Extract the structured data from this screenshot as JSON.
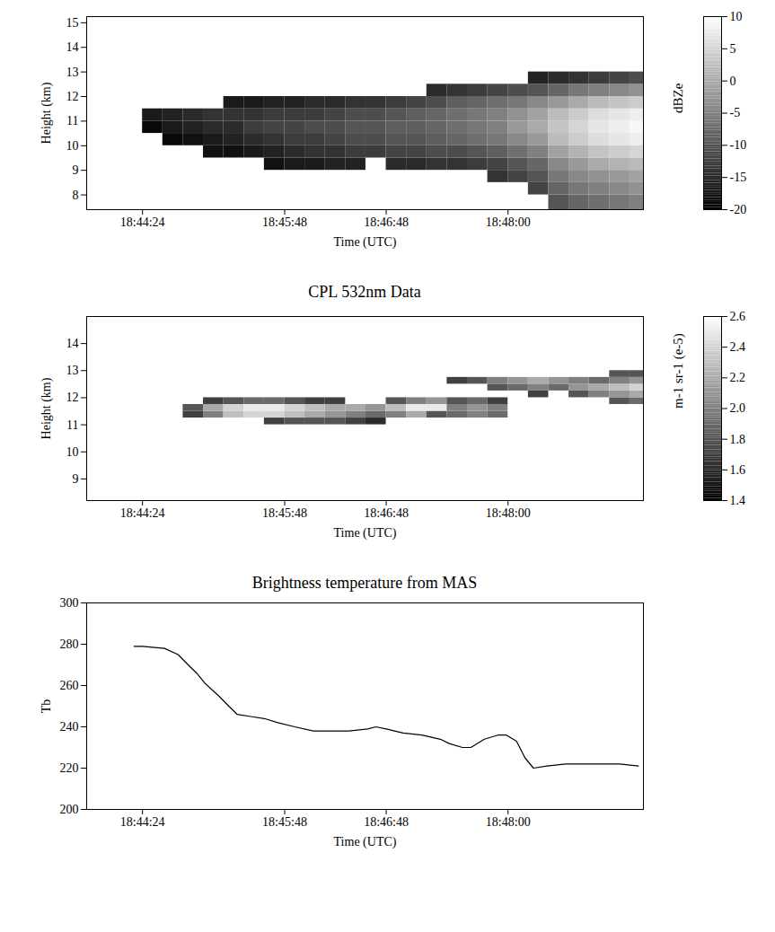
{
  "chart_data": [
    {
      "type": "heatmap",
      "xlabel": "Time (UTC)",
      "ylabel": "Height (km)",
      "xlim": [
        67431,
        67760
      ],
      "xticks": [
        {
          "value": 67464,
          "label": "18:44:24"
        },
        {
          "value": 67548,
          "label": "18:45:48"
        },
        {
          "value": 67608,
          "label": "18:46:48"
        },
        {
          "value": 67680,
          "label": "18:48:00"
        }
      ],
      "ylim": [
        7.4,
        15.25
      ],
      "yticks": [
        8,
        9,
        10,
        11,
        12,
        13,
        14,
        15
      ],
      "x_edges": [
        67464,
        67476,
        67488,
        67500,
        67512,
        67524,
        67536,
        67548,
        67560,
        67572,
        67584,
        67596,
        67608,
        67620,
        67632,
        67644,
        67656,
        67668,
        67680,
        67692,
        67704,
        67716,
        67728,
        67740,
        67752,
        67764
      ],
      "y_edges": [
        7.4,
        8,
        8.5,
        9,
        9.5,
        10,
        10.5,
        11,
        11.5,
        12,
        12.5,
        13
      ],
      "values": [
        [
          null,
          null,
          null,
          null,
          null,
          null,
          -19,
          -17,
          null,
          null,
          null
        ],
        [
          null,
          null,
          null,
          null,
          null,
          -19,
          -17,
          -16,
          null,
          null,
          null
        ],
        [
          null,
          null,
          null,
          null,
          null,
          -18,
          -16,
          -15,
          null,
          null,
          null
        ],
        [
          null,
          null,
          null,
          null,
          -18,
          -17,
          -15,
          -14,
          null,
          null,
          null
        ],
        [
          null,
          null,
          null,
          null,
          -18,
          -16,
          -15,
          -14,
          -17,
          null,
          null
        ],
        [
          null,
          null,
          null,
          null,
          -17,
          -15,
          -13,
          -14,
          -17,
          null,
          null
        ],
        [
          null,
          null,
          null,
          -18,
          -16,
          -14,
          -12,
          -13,
          -16,
          null,
          null
        ],
        [
          null,
          null,
          null,
          -17,
          -15,
          -13,
          -12,
          -13,
          -16,
          null,
          null
        ],
        [
          null,
          null,
          null,
          -17,
          -14,
          -13,
          -11,
          -13,
          -15,
          null,
          null
        ],
        [
          null,
          null,
          null,
          -16,
          -14,
          -12,
          -11,
          -12,
          -15,
          null,
          null
        ],
        [
          null,
          null,
          null,
          -16,
          -13,
          -11,
          -10,
          -11,
          -14,
          null,
          null
        ],
        [
          null,
          null,
          null,
          null,
          -13,
          -11,
          -10,
          -11,
          -14,
          null,
          null
        ],
        [
          null,
          null,
          null,
          -15,
          -12,
          -10,
          -9,
          -10,
          -13,
          null,
          null
        ],
        [
          null,
          null,
          null,
          -15,
          -12,
          -10,
          -9,
          -9,
          -12,
          null,
          null
        ],
        [
          null,
          null,
          null,
          -14,
          -11,
          -9,
          -8,
          -8,
          -11,
          -15,
          null
        ],
        [
          null,
          null,
          null,
          -14,
          -11,
          -8,
          -7,
          -7,
          -9,
          -14,
          null
        ],
        [
          null,
          null,
          null,
          -13,
          -10,
          -7,
          -6,
          -6,
          -8,
          -13,
          null
        ],
        [
          null,
          null,
          -14,
          -12,
          -9,
          -6,
          -5,
          -5,
          -7,
          -12,
          null
        ],
        [
          null,
          null,
          -12,
          -10,
          -7,
          -4,
          -2,
          -3,
          -6,
          -11,
          null
        ],
        [
          null,
          -12,
          -10,
          -8,
          -5,
          -2,
          0,
          -1,
          -4,
          -10,
          -16
        ],
        [
          -10,
          -8,
          -6,
          -4,
          -1,
          2,
          3,
          2,
          -2,
          -8,
          -15
        ],
        [
          -8,
          -6,
          -4,
          -2,
          1,
          4,
          5,
          4,
          0,
          -6,
          -14
        ],
        [
          -7,
          -5,
          -3,
          0,
          3,
          6,
          7,
          6,
          2,
          -5,
          -13
        ],
        [
          -6,
          -4,
          -2,
          1,
          4,
          7,
          8,
          7,
          3,
          -4,
          -12
        ],
        [
          -5,
          -3,
          -1,
          2,
          5,
          8,
          9,
          8,
          4,
          -3,
          -11
        ]
      ],
      "colorbar": {
        "label": "dBZe",
        "range": [
          -20,
          10
        ],
        "ticks": [
          -20,
          -15,
          -10,
          -5,
          0,
          5,
          10
        ]
      }
    },
    {
      "type": "heatmap",
      "title": "CPL 532nm Data",
      "xlabel": "Time (UTC)",
      "ylabel": "Height (km)",
      "xlim": [
        67431,
        67760
      ],
      "xticks": [
        {
          "value": 67464,
          "label": "18:44:24"
        },
        {
          "value": 67548,
          "label": "18:45:48"
        },
        {
          "value": 67608,
          "label": "18:46:48"
        },
        {
          "value": 67680,
          "label": "18:48:00"
        }
      ],
      "ylim": [
        8.2,
        15
      ],
      "yticks": [
        9,
        10,
        11,
        12,
        13,
        14
      ],
      "x_edges": [
        67464,
        67476,
        67488,
        67500,
        67512,
        67524,
        67536,
        67548,
        67560,
        67572,
        67584,
        67596,
        67608,
        67620,
        67632,
        67644,
        67656,
        67668,
        67680,
        67692,
        67704,
        67716,
        67728,
        67740,
        67752,
        67764
      ],
      "y_edges": [
        11,
        11.25,
        11.5,
        11.75,
        12,
        12.25,
        12.5,
        12.75,
        13
      ],
      "values": [
        [
          null,
          null,
          null,
          null,
          null,
          null,
          null,
          null
        ],
        [
          null,
          null,
          null,
          null,
          null,
          null,
          null,
          null
        ],
        [
          null,
          1.7,
          1.8,
          null,
          null,
          null,
          null,
          null
        ],
        [
          null,
          2.0,
          2.2,
          1.7,
          null,
          null,
          null,
          null
        ],
        [
          null,
          2.3,
          2.4,
          1.8,
          null,
          null,
          null,
          null
        ],
        [
          null,
          2.4,
          2.5,
          1.9,
          null,
          null,
          null,
          null
        ],
        [
          1.7,
          2.4,
          2.5,
          1.9,
          null,
          null,
          null,
          null
        ],
        [
          1.8,
          2.3,
          2.4,
          1.8,
          null,
          null,
          null,
          null
        ],
        [
          1.8,
          2.2,
          2.3,
          1.7,
          null,
          null,
          null,
          null
        ],
        [
          1.8,
          2.1,
          2.2,
          1.7,
          null,
          null,
          null,
          null
        ],
        [
          1.7,
          2.0,
          2.2,
          null,
          null,
          null,
          null,
          null
        ],
        [
          1.6,
          1.9,
          2.1,
          null,
          null,
          null,
          null,
          null
        ],
        [
          null,
          2.0,
          2.3,
          1.8,
          null,
          null,
          null,
          null
        ],
        [
          null,
          2.2,
          2.5,
          2.0,
          null,
          null,
          null,
          null
        ],
        [
          null,
          1.8,
          2.5,
          2.1,
          null,
          null,
          null,
          null
        ],
        [
          null,
          1.9,
          2.0,
          1.8,
          null,
          null,
          1.7,
          null
        ],
        [
          null,
          2.0,
          2.1,
          1.9,
          null,
          null,
          1.8,
          null
        ],
        [
          null,
          1.9,
          2.0,
          1.7,
          null,
          1.8,
          2.0,
          null
        ],
        [
          null,
          null,
          null,
          null,
          null,
          1.9,
          2.1,
          null
        ],
        [
          null,
          null,
          null,
          null,
          1.7,
          2.0,
          2.2,
          null
        ],
        [
          null,
          null,
          null,
          null,
          null,
          1.9,
          2.1,
          null
        ],
        [
          null,
          null,
          null,
          null,
          1.8,
          2.1,
          2.0,
          null
        ],
        [
          null,
          null,
          null,
          null,
          2.0,
          2.2,
          1.9,
          null
        ],
        [
          null,
          null,
          null,
          1.8,
          2.1,
          2.3,
          2.0,
          1.8
        ],
        [
          null,
          null,
          null,
          1.9,
          2.2,
          2.4,
          2.1,
          1.8
        ]
      ],
      "colorbar": {
        "label": "m-1 sr-1 (e-5)",
        "range": [
          1.4,
          2.6
        ],
        "ticks": [
          1.4,
          1.6,
          1.8,
          {
            "value": 2,
            "label": "2.0"
          },
          2.2,
          2.4,
          2.6
        ]
      }
    },
    {
      "type": "line",
      "title": "Brightness temperature from MAS",
      "xlabel": "Time (UTC)",
      "ylabel": "Tb",
      "color": "black",
      "xlim": [
        67431,
        67760
      ],
      "xticks": [
        {
          "value": 67464,
          "label": "18:44:24"
        },
        {
          "value": 67548,
          "label": "18:45:48"
        },
        {
          "value": 67608,
          "label": "18:46:48"
        },
        {
          "value": 67680,
          "label": "18:48:00"
        }
      ],
      "ylim": [
        200,
        300
      ],
      "yticks": [
        200,
        220,
        240,
        260,
        280,
        300
      ],
      "x": [
        67459,
        67464,
        67477,
        67485,
        67491,
        67496,
        67501,
        67509,
        67515,
        67520,
        67528,
        67536,
        67544,
        67554,
        67565,
        67576,
        67586,
        67597,
        67602,
        67608,
        67618,
        67629,
        67640,
        67645,
        67653,
        67658,
        67666,
        67674,
        67679,
        67685,
        67690,
        67695,
        67703,
        67714,
        67725,
        67735,
        67746,
        67757
      ],
      "values": [
        279,
        279,
        278,
        275,
        270,
        266,
        261,
        255,
        250,
        246,
        245,
        244,
        242,
        240,
        238,
        238,
        238,
        239,
        240,
        239,
        237,
        236,
        234,
        232,
        230,
        230,
        234,
        236,
        236,
        233,
        225,
        220,
        221,
        222,
        222,
        222,
        222,
        221
      ]
    }
  ]
}
